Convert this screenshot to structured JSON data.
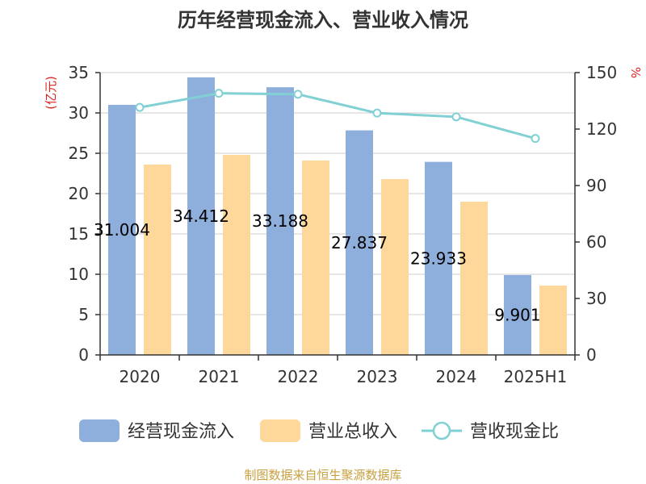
{
  "chart_data": {
    "type": "bar",
    "title": "历年经营现金流入、营业收入情况",
    "categories": [
      "2020",
      "2021",
      "2022",
      "2023",
      "2024",
      "2025H1"
    ],
    "y_left_unit": "(亿元)",
    "y_right_unit": "%",
    "ylim_left": [
      0,
      35
    ],
    "ylim_right": [
      0,
      150
    ],
    "yticks_left": [
      0,
      5,
      10,
      15,
      20,
      25,
      30,
      35
    ],
    "yticks_right": [
      0,
      30,
      60,
      90,
      120,
      150
    ],
    "grid": true,
    "legend_position": "bottom",
    "series": [
      {
        "name": "经营现金流入",
        "type": "bar",
        "axis": "left",
        "color": "#8eaedb",
        "values": [
          31.004,
          34.412,
          33.188,
          27.837,
          23.933,
          9.901
        ],
        "labels": [
          "31.004",
          "34.412",
          "33.188",
          "27.837",
          "23.933",
          "9.901"
        ]
      },
      {
        "name": "营业总收入",
        "type": "bar",
        "axis": "left",
        "color": "#fdd89a",
        "values": [
          23.6,
          24.8,
          24.1,
          21.8,
          19.0,
          8.6
        ]
      },
      {
        "name": "营收现金比",
        "type": "line",
        "axis": "right",
        "color": "#80d0d4",
        "values": [
          131.5,
          139.0,
          138.5,
          128.5,
          126.5,
          115.0
        ]
      }
    ],
    "source": "制图数据来自恒生聚源数据库"
  }
}
